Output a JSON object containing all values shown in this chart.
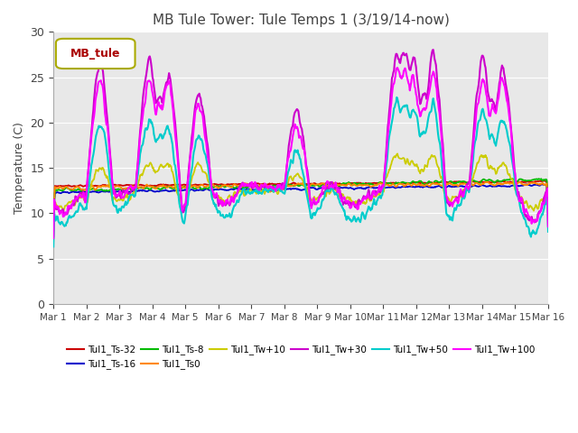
{
  "title": "MB Tule Tower: Tule Temps 1 (3/19/14-now)",
  "ylabel": "Temperature (C)",
  "xlim": [
    0,
    15
  ],
  "ylim": [
    0,
    30
  ],
  "yticks": [
    0,
    5,
    10,
    15,
    20,
    25,
    30
  ],
  "xtick_labels": [
    "Mar 1",
    "Mar 2",
    "Mar 3",
    "Mar 4",
    "Mar 5",
    "Mar 6",
    "Mar 7",
    "Mar 8",
    "Mar 9",
    "Mar 10",
    "Mar 11",
    "Mar 12",
    "Mar 13",
    "Mar 14",
    "Mar 15",
    "Mar 16"
  ],
  "legend_box_label": "MB_tule",
  "legend_box_text_color": "#aa0000",
  "legend_box_edge_color": "#aaaa00",
  "series": [
    {
      "label": "Tul1_Ts-32",
      "color": "#cc0000"
    },
    {
      "label": "Tul1_Ts-16",
      "color": "#0000cc"
    },
    {
      "label": "Tul1_Ts-8",
      "color": "#00bb00"
    },
    {
      "label": "Tul1_Ts0",
      "color": "#ff8800"
    },
    {
      "label": "Tul1_Tw+10",
      "color": "#cccc00"
    },
    {
      "label": "Tul1_Tw+30",
      "color": "#cc00cc"
    },
    {
      "label": "Tul1_Tw+50",
      "color": "#00cccc"
    },
    {
      "label": "Tul1_Tw+100",
      "color": "#ff00ff"
    }
  ],
  "plot_bg_color": "#e8e8e8",
  "fig_bg_color": "#ffffff",
  "title_fontsize": 11,
  "title_color": "#444444",
  "tick_color": "#444444",
  "label_color": "#444444"
}
